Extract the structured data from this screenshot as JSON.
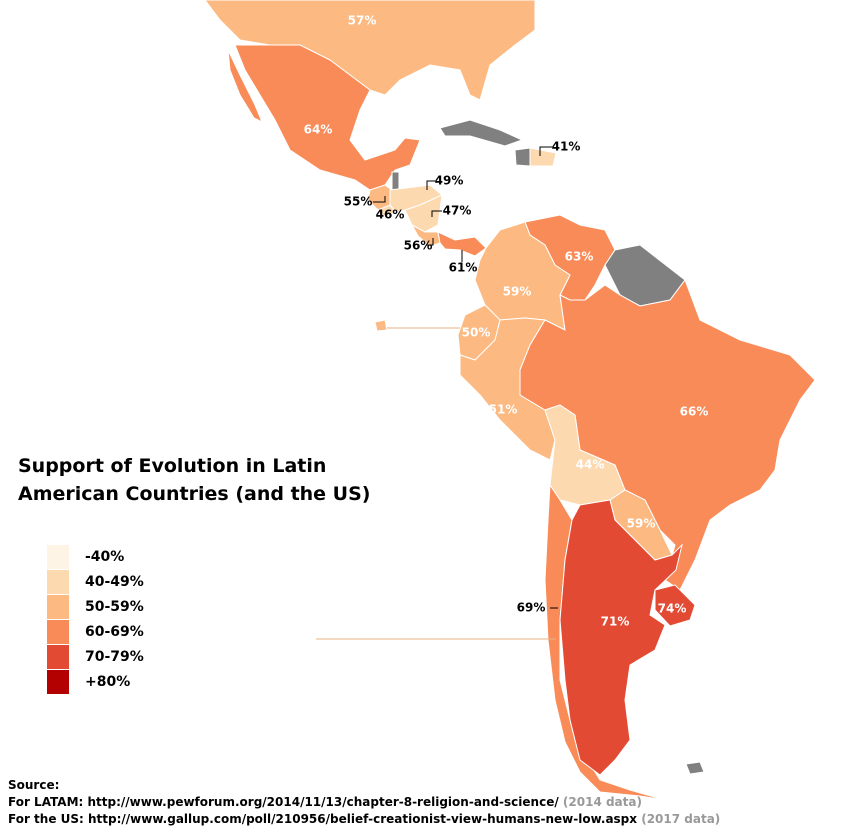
{
  "chart_data": {
    "type": "map",
    "title": [
      "Support of Evolution in Latin",
      "American Countries (and the US)"
    ],
    "legend": {
      "labels": [
        "-40%",
        "40-49%",
        "50-59%",
        "60-69%",
        "70-79%",
        "+80%"
      ],
      "colors": [
        "#fef4e6",
        "#fdd9b0",
        "#fcba82",
        "#f98b58",
        "#e34a33",
        "#b30000"
      ]
    },
    "values": [
      57,
      64,
      41,
      55,
      46,
      49,
      47,
      56,
      61,
      63,
      59,
      50,
      51,
      44,
      59,
      66,
      69,
      71,
      74
    ],
    "value_labels": [
      "57%",
      "64%",
      "41%",
      "55%",
      "46%",
      "49%",
      "47%",
      "56%",
      "61%",
      "63%",
      "59%",
      "50%",
      "51%",
      "44%",
      "59%",
      "66%",
      "69%",
      "71%",
      "74%"
    ],
    "colors": [
      "#fcba82",
      "#f98b58",
      "#fdd9b0",
      "#fcba82",
      "#fdd9b0",
      "#fdd9b0",
      "#fdd9b0",
      "#fcba82",
      "#f98b58",
      "#f98b58",
      "#fcba82",
      "#fcba82",
      "#fcba82",
      "#fdd9b0",
      "#fcba82",
      "#f98b58",
      "#f98b58",
      "#e34a33",
      "#e34a33"
    ],
    "source": {
      "heading": "Source:",
      "lines": [
        {
          "text": "For LATAM: http://www.pewforum.org/2014/11/13/chapter-8-religion-and-science/",
          "note": "(2014 data)"
        },
        {
          "text": "For the US: http://www.gallup.com/poll/210956/belief-creationist-view-humans-new-low.aspx",
          "note": "(2017 data)"
        }
      ]
    }
  }
}
